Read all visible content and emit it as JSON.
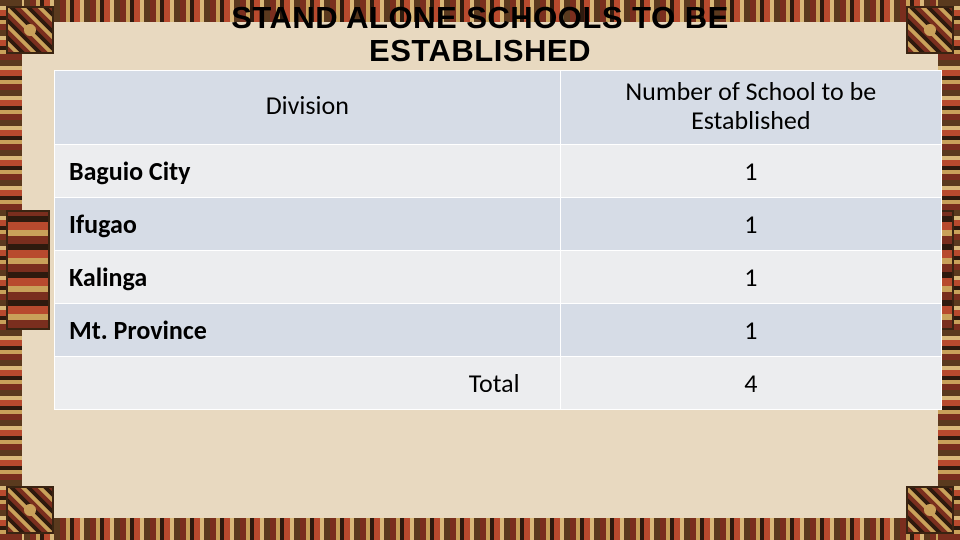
{
  "title_line1": "STAND ALONE SCHOOLS TO BE",
  "title_line2": "ESTABLISHED",
  "table": {
    "columns": [
      "Division",
      "Number of School to be Established"
    ],
    "rows": [
      {
        "label": "Baguio City",
        "value": "1"
      },
      {
        "label": "Ifugao",
        "value": "1"
      },
      {
        "label": "Kalinga",
        "value": "1"
      },
      {
        "label": "Mt. Province",
        "value": "1"
      }
    ],
    "total_label": "Total",
    "total_value": "4",
    "header_bg": "#d6dce6",
    "row_odd_bg": "#ecedef",
    "row_even_bg": "#d6dce6",
    "border_color": "#ffffff",
    "col_widths_pct": [
      57,
      43
    ],
    "font_size_pt": 20,
    "text_color": "#000000"
  },
  "style": {
    "page_bg": "#e8d9c0",
    "title_color": "#000000",
    "title_fontsize_pt": 24,
    "border_palette": [
      "#7a2e1e",
      "#c9a15a",
      "#2e1a0e",
      "#b84a2e",
      "#d8b97a",
      "#5a3a1e"
    ]
  }
}
